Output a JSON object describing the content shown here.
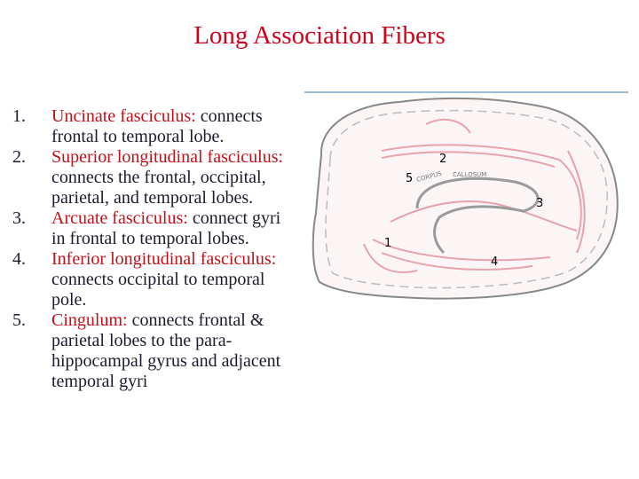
{
  "title": "Long Association Fibers",
  "items": [
    {
      "number": "1.",
      "term": "Uncinate fasciculus:",
      "text": "connects frontal to temporal lobe."
    },
    {
      "number": "2.",
      "term": "Superior longitudinal fasciculus:",
      "text": "connects the frontal, occipital, parietal, and temporal lobes."
    },
    {
      "number": "3.",
      "term": "Arcuate fasciculus:",
      "text": "connect gyri in frontal to temporal lobes."
    },
    {
      "number": "4.",
      "term": "Inferior longitudinal fasciculus:",
      "text": "connects occipital to temporal pole."
    },
    {
      "number": "5.",
      "term": "Cingulum:",
      "text": "connects frontal & parietal lobes to the para-hippocampal gyrus and adjacent temporal gyri"
    }
  ],
  "figure": {
    "labels": [
      "2",
      "5",
      "3",
      "1",
      "4"
    ],
    "words": [
      "CORPUS",
      "CALLOSUM"
    ]
  }
}
